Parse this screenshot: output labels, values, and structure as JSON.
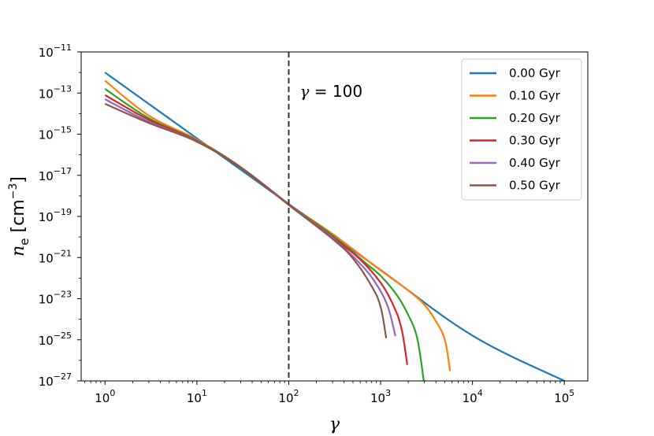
{
  "chart_data": {
    "type": "line",
    "title": "",
    "xlabel": "γ",
    "ylabel": "n_e [cm^-3]",
    "xscale": "log",
    "yscale": "log",
    "xlim": [
      0.55,
      180000
    ],
    "ylim": [
      1e-27,
      1e-11
    ],
    "x_ticks": [
      {
        "value": 1,
        "base": "10",
        "exp": "0"
      },
      {
        "value": 10,
        "base": "10",
        "exp": "1"
      },
      {
        "value": 100,
        "base": "10",
        "exp": "2"
      },
      {
        "value": 1000,
        "base": "10",
        "exp": "3"
      },
      {
        "value": 10000,
        "base": "10",
        "exp": "4"
      },
      {
        "value": 100000,
        "base": "10",
        "exp": "5"
      }
    ],
    "y_ticks": [
      {
        "value": 1e-27,
        "base": "10",
        "exp": "−27"
      },
      {
        "value": 1e-25,
        "base": "10",
        "exp": "−25"
      },
      {
        "value": 1e-23,
        "base": "10",
        "exp": "−23"
      },
      {
        "value": 1e-21,
        "base": "10",
        "exp": "−21"
      },
      {
        "value": 1e-19,
        "base": "10",
        "exp": "−19"
      },
      {
        "value": 1e-17,
        "base": "10",
        "exp": "−17"
      },
      {
        "value": 1e-15,
        "base": "10",
        "exp": "−15"
      },
      {
        "value": 1e-13,
        "base": "10",
        "exp": "−13"
      },
      {
        "value": 1e-11,
        "base": "10",
        "exp": "−11"
      }
    ],
    "grid": false,
    "legend_position": "top-right",
    "annotation": {
      "text": "γ = 100",
      "x": 100,
      "style": "dashed vertical line"
    },
    "series": [
      {
        "name": "0.00 Gyr",
        "color": "#1f77b4",
        "x": [
          1,
          10,
          100,
          1000,
          10000,
          100000
        ],
        "y": [
          1e-12,
          6.3e-16,
          4e-19,
          2.5e-22,
          1.6e-25,
          1e-27
        ]
      },
      {
        "name": "0.10 Gyr",
        "color": "#ff7f0e",
        "x": [
          1,
          3,
          10,
          30,
          100,
          300,
          1000,
          2000,
          3000,
          4000,
          5000,
          5700
        ],
        "y": [
          4e-13,
          8e-15,
          5.5e-16,
          2.5e-17,
          4e-19,
          1.4e-20,
          2.4e-22,
          2.5e-23,
          5e-24,
          8e-25,
          1e-25,
          3e-27
        ]
      },
      {
        "name": "0.20 Gyr",
        "color": "#2ca02c",
        "x": [
          1,
          3,
          10,
          30,
          100,
          300,
          700,
          1000,
          1500,
          2000,
          2500,
          2950
        ],
        "y": [
          1.6e-13,
          6e-15,
          5e-16,
          2.5e-17,
          4e-19,
          1.2e-20,
          5e-22,
          1.3e-22,
          1.5e-23,
          1.6e-24,
          1.2e-25,
          1e-27
        ]
      },
      {
        "name": "0.30 Gyr",
        "color": "#d62728",
        "x": [
          1,
          3,
          10,
          30,
          100,
          300,
          600,
          1000,
          1400,
          1700,
          1950
        ],
        "y": [
          8e-14,
          5e-15,
          4.7e-16,
          2.4e-17,
          3.9e-19,
          1e-20,
          8e-22,
          6e-23,
          4e-24,
          3e-25,
          6e-27
        ]
      },
      {
        "name": "0.40 Gyr",
        "color": "#9467bd",
        "x": [
          1,
          3,
          10,
          30,
          100,
          300,
          600,
          900,
          1200,
          1450
        ],
        "y": [
          5e-14,
          4e-15,
          4.5e-16,
          2.3e-17,
          3.8e-19,
          9e-21,
          5e-22,
          5e-23,
          4e-24,
          1.5e-25
        ]
      },
      {
        "name": "0.50 Gyr",
        "color": "#8c564b",
        "x": [
          1,
          3,
          10,
          30,
          100,
          300,
          500,
          800,
          1000,
          1150
        ],
        "y": [
          3e-14,
          3.5e-15,
          4.3e-16,
          2.3e-17,
          3.6e-19,
          8e-21,
          9e-22,
          4e-23,
          4e-24,
          1.2e-25
        ]
      }
    ]
  }
}
